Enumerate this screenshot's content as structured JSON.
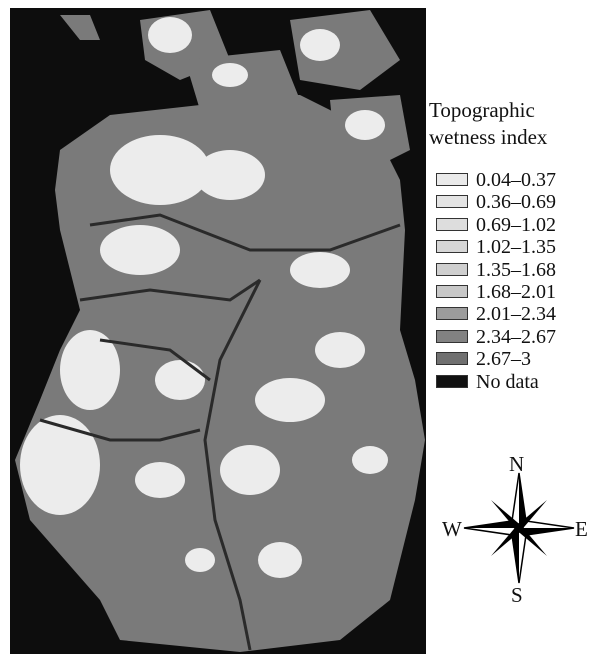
{
  "legend": {
    "title": "Topographic wetness index",
    "items": [
      {
        "label": "0.04–0.37",
        "color": "#eaeaea"
      },
      {
        "label": "0.36–0.69",
        "color": "#e4e4e4"
      },
      {
        "label": "0.69–1.02",
        "color": "#dddddd"
      },
      {
        "label": "1.02–1.35",
        "color": "#d6d6d6"
      },
      {
        "label": "1.35–1.68",
        "color": "#cfcfcf"
      },
      {
        "label": "1.68–2.01",
        "color": "#c8c8c8"
      },
      {
        "label": "2.01–2.34",
        "color": "#9c9c9c"
      },
      {
        "label": "2.34–2.67",
        "color": "#828282"
      },
      {
        "label": "2.67–3",
        "color": "#707070"
      },
      {
        "label": "No data",
        "color": "#111111"
      }
    ]
  },
  "compass": {
    "n": "N",
    "e": "E",
    "s": "S",
    "w": "W"
  }
}
